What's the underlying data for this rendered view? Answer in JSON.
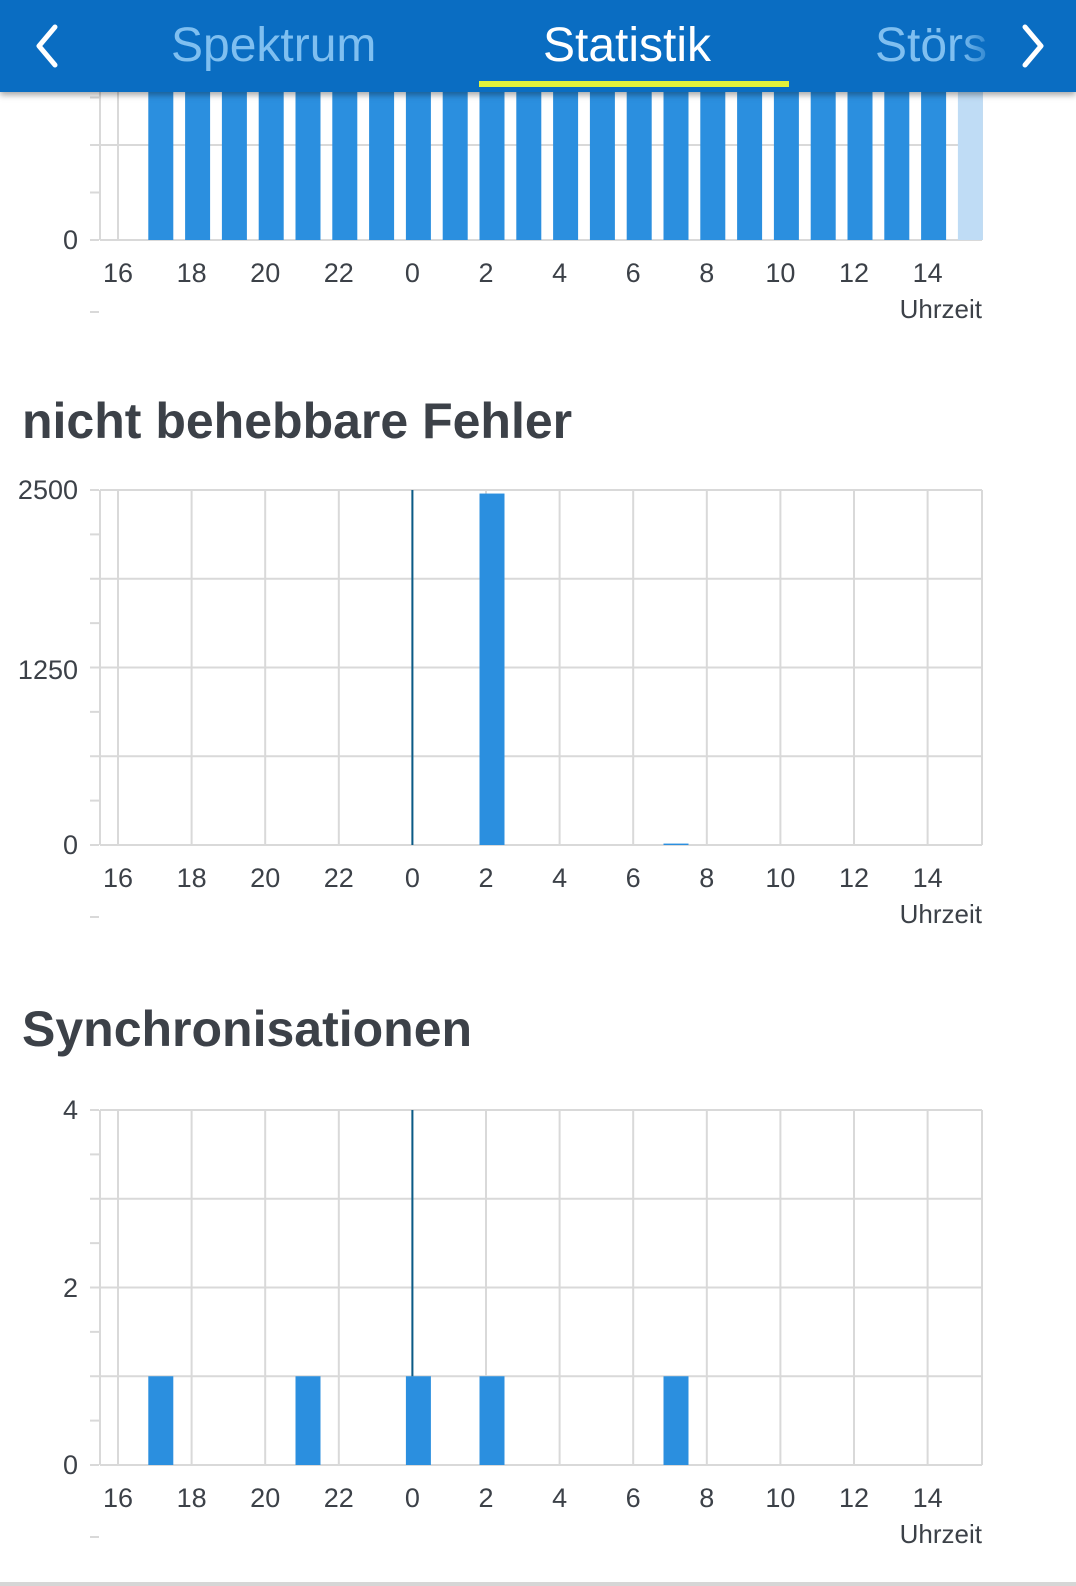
{
  "header": {
    "back_icon": "chevron-left-icon",
    "forward_icon": "chevron-right-icon",
    "tabs": [
      {
        "label": "Spektrum",
        "active": false
      },
      {
        "label": "Statistik",
        "active": true
      },
      {
        "label": "Störs",
        "active": false
      }
    ],
    "background_color": "#0a6dc2",
    "active_underline_color": "#e3f23a"
  },
  "sections": {
    "uncorrectable_title": "nicht behebbare Fehler",
    "sync_title": "Synchronisationen"
  },
  "charts": {
    "x_tick_labels": [
      "16",
      "18",
      "20",
      "22",
      "0",
      "2",
      "4",
      "6",
      "8",
      "10",
      "12",
      "14"
    ],
    "xlabel": "Uhrzeit",
    "bar_color": "#2b8fdf",
    "current_bar_color": "#bfdcf5"
  },
  "chart_data": [
    {
      "type": "bar",
      "xlabel": "Uhrzeit",
      "ylabel": "",
      "y_tick_labels": [
        "0"
      ],
      "x_tick_labels": [
        "16",
        "18",
        "20",
        "22",
        "0",
        "2",
        "4",
        "6",
        "8",
        "10",
        "12",
        "14"
      ],
      "categories": [
        "17",
        "18",
        "19",
        "20",
        "21",
        "22",
        "23",
        "0",
        "1",
        "2",
        "3",
        "4",
        "5",
        "6",
        "7",
        "8",
        "9",
        "10",
        "11",
        "12",
        "13",
        "14",
        "15"
      ],
      "values": [
        1,
        1,
        1,
        1,
        1,
        1,
        1,
        1,
        1,
        1,
        1,
        1,
        1,
        1,
        1,
        1,
        1,
        1,
        1,
        1,
        1,
        1,
        1
      ],
      "note_partial_last_bar": true,
      "grid": true
    },
    {
      "type": "bar",
      "xlabel": "Uhrzeit",
      "ylabel": "",
      "y_tick_labels": [
        "2500",
        "1250",
        "0"
      ],
      "ylim": [
        0,
        2500
      ],
      "x_tick_labels": [
        "16",
        "18",
        "20",
        "22",
        "0",
        "2",
        "4",
        "6",
        "8",
        "10",
        "12",
        "14"
      ],
      "categories": [
        "17",
        "18",
        "19",
        "20",
        "21",
        "22",
        "23",
        "0",
        "1",
        "2",
        "3",
        "4",
        "5",
        "6",
        "7",
        "8",
        "9",
        "10",
        "11",
        "12",
        "13",
        "14",
        "15"
      ],
      "values": [
        0,
        0,
        0,
        0,
        0,
        0,
        0,
        0,
        0,
        2475,
        0,
        0,
        0,
        0,
        10,
        0,
        0,
        0,
        0,
        0,
        0,
        0,
        0
      ],
      "grid": true
    },
    {
      "type": "bar",
      "xlabel": "Uhrzeit",
      "ylabel": "",
      "y_tick_labels": [
        "4",
        "2",
        "0"
      ],
      "ylim": [
        0,
        4
      ],
      "x_tick_labels": [
        "16",
        "18",
        "20",
        "22",
        "0",
        "2",
        "4",
        "6",
        "8",
        "10",
        "12",
        "14"
      ],
      "categories": [
        "17",
        "18",
        "19",
        "20",
        "21",
        "22",
        "23",
        "0",
        "1",
        "2",
        "3",
        "4",
        "5",
        "6",
        "7",
        "8",
        "9",
        "10",
        "11",
        "12",
        "13",
        "14",
        "15"
      ],
      "values": [
        1,
        0,
        0,
        0,
        1,
        0,
        0,
        1,
        0,
        1,
        0,
        0,
        0,
        0,
        1,
        0,
        0,
        0,
        0,
        0,
        0,
        0,
        0
      ],
      "grid": true
    }
  ]
}
